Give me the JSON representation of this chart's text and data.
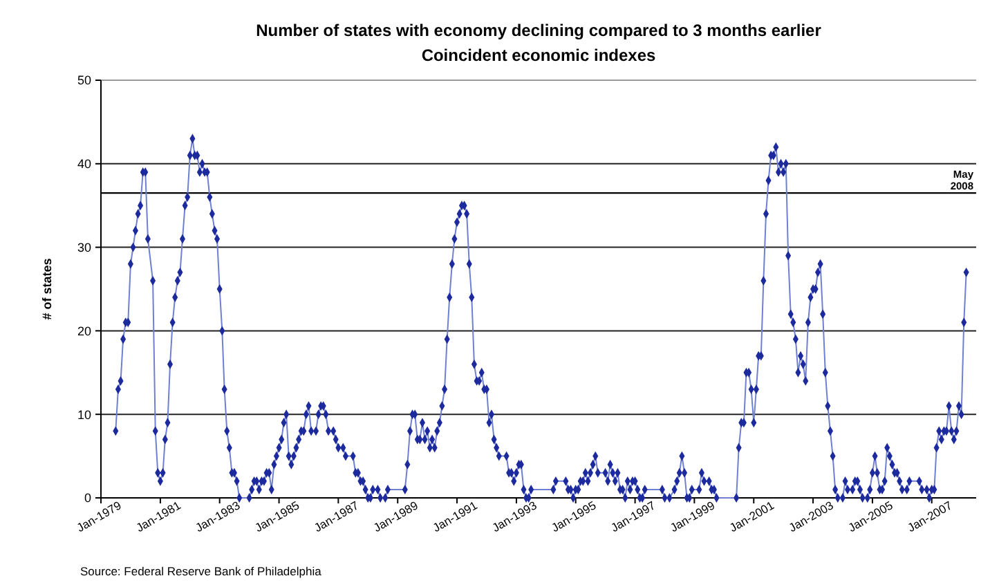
{
  "chart_data": {
    "type": "line",
    "title": "Number of states with economy declining compared to 3 months earlier",
    "subtitle": "Coincident economic indexes",
    "ylabel": "# of states",
    "xlim": [
      "1979-01",
      "2008-07"
    ],
    "ylim": [
      0,
      50
    ],
    "yticks": [
      0,
      10,
      20,
      30,
      40,
      50
    ],
    "xticks": [
      {
        "value": "1979-01",
        "label": "Jan-1979"
      },
      {
        "value": "1981-01",
        "label": "Jan-1981"
      },
      {
        "value": "1983-01",
        "label": "Jan-1983"
      },
      {
        "value": "1985-01",
        "label": "Jan-1985"
      },
      {
        "value": "1987-01",
        "label": "Jan-1987"
      },
      {
        "value": "1989-01",
        "label": "Jan-1989"
      },
      {
        "value": "1991-01",
        "label": "Jan-1991"
      },
      {
        "value": "1993-01",
        "label": "Jan-1993"
      },
      {
        "value": "1995-01",
        "label": "Jan-1995"
      },
      {
        "value": "1997-01",
        "label": "Jan-1997"
      },
      {
        "value": "1999-01",
        "label": "Jan-1999"
      },
      {
        "value": "2001-01",
        "label": "Jan-2001"
      },
      {
        "value": "2003-01",
        "label": "Jan-2003"
      },
      {
        "value": "2005-01",
        "label": "Jan-2005"
      },
      {
        "value": "2007-01",
        "label": "Jan-2007"
      }
    ],
    "grid": "y",
    "marker": "diamond",
    "ref_lines": [
      {
        "axis": "y",
        "value": 36.5,
        "label": "May 2008",
        "color": "#000000"
      }
    ],
    "annotations": [
      "Source: Federal Reserve Bank of Philadelphia"
    ],
    "series": [
      {
        "color": "#1c2a9e",
        "x": [
          "1979-07",
          "1979-08",
          "1979-09",
          "1979-10",
          "1979-11",
          "1979-12",
          "1980-01",
          "1980-02",
          "1980-03",
          "1980-04",
          "1980-05",
          "1980-06",
          "1980-07",
          "1980-08",
          "1980-10",
          "1980-11",
          "1980-12",
          "1981-01",
          "1981-02",
          "1981-03",
          "1981-04",
          "1981-05",
          "1981-06",
          "1981-07",
          "1981-08",
          "1981-09",
          "1981-10",
          "1981-11",
          "1981-12",
          "1982-01",
          "1982-02",
          "1982-03",
          "1982-04",
          "1982-05",
          "1982-06",
          "1982-07",
          "1982-08",
          "1982-09",
          "1982-10",
          "1982-11",
          "1982-12",
          "1983-01",
          "1983-02",
          "1983-03",
          "1983-04",
          "1983-05",
          "1983-06",
          "1983-07",
          "1983-08",
          "1983-09",
          "1984-01",
          "1984-02",
          "1984-03",
          "1984-04",
          "1984-05",
          "1984-06",
          "1984-07",
          "1984-08",
          "1984-09",
          "1984-10",
          "1984-11",
          "1984-12",
          "1985-01",
          "1985-02",
          "1985-03",
          "1985-04",
          "1985-05",
          "1985-06",
          "1985-07",
          "1985-08",
          "1985-09",
          "1985-10",
          "1985-11",
          "1985-12",
          "1986-01",
          "1986-02",
          "1986-04",
          "1986-05",
          "1986-06",
          "1986-07",
          "1986-08",
          "1986-09",
          "1986-11",
          "1986-12",
          "1987-01",
          "1987-03",
          "1987-04",
          "1987-07",
          "1987-08",
          "1987-09",
          "1987-10",
          "1987-11",
          "1987-12",
          "1988-01",
          "1988-02",
          "1988-03",
          "1988-05",
          "1988-06",
          "1988-08",
          "1988-09",
          "1989-04",
          "1989-05",
          "1989-06",
          "1989-07",
          "1989-08",
          "1989-09",
          "1989-10",
          "1989-11",
          "1989-12",
          "1990-01",
          "1990-02",
          "1990-03",
          "1990-04",
          "1990-05",
          "1990-06",
          "1990-07",
          "1990-08",
          "1990-09",
          "1990-10",
          "1990-11",
          "1990-12",
          "1991-01",
          "1991-02",
          "1991-03",
          "1991-04",
          "1991-05",
          "1991-06",
          "1991-07",
          "1991-08",
          "1991-09",
          "1991-10",
          "1991-11",
          "1991-12",
          "1992-01",
          "1992-02",
          "1992-03",
          "1992-04",
          "1992-05",
          "1992-06",
          "1992-09",
          "1992-10",
          "1992-11",
          "1992-12",
          "1993-01",
          "1993-02",
          "1993-03",
          "1993-04",
          "1993-05",
          "1993-06",
          "1993-07",
          "1994-04",
          "1994-05",
          "1994-09",
          "1994-10",
          "1994-11",
          "1994-12",
          "1995-01",
          "1995-02",
          "1995-03",
          "1995-04",
          "1995-05",
          "1995-06",
          "1995-07",
          "1995-08",
          "1995-09",
          "1995-10",
          "1996-01",
          "1996-02",
          "1996-03",
          "1996-04",
          "1996-05",
          "1996-06",
          "1996-07",
          "1996-08",
          "1996-09",
          "1996-10",
          "1996-11",
          "1996-12",
          "1997-01",
          "1997-02",
          "1997-03",
          "1997-04",
          "1997-05",
          "1997-12",
          "1998-01",
          "1998-03",
          "1998-05",
          "1998-06",
          "1998-07",
          "1998-08",
          "1998-09",
          "1998-10",
          "1998-11",
          "1998-12",
          "1999-03",
          "1999-04",
          "1999-05",
          "1999-07",
          "1999-08",
          "1999-09",
          "1999-10",
          "2000-06",
          "2000-07",
          "2000-08",
          "2000-09",
          "2000-10",
          "2000-11",
          "2000-12",
          "2001-01",
          "2001-02",
          "2001-03",
          "2001-04",
          "2001-05",
          "2001-06",
          "2001-07",
          "2001-08",
          "2001-09",
          "2001-10",
          "2001-11",
          "2001-12",
          "2002-01",
          "2002-02",
          "2002-03",
          "2002-04",
          "2002-05",
          "2002-06",
          "2002-07",
          "2002-08",
          "2002-09",
          "2002-10",
          "2002-11",
          "2002-12",
          "2003-01",
          "2003-02",
          "2003-03",
          "2003-04",
          "2003-05",
          "2003-06",
          "2003-07",
          "2003-08",
          "2003-09",
          "2003-10",
          "2003-11",
          "2004-01",
          "2004-02",
          "2004-03",
          "2004-05",
          "2004-06",
          "2004-07",
          "2004-08",
          "2004-09",
          "2004-11",
          "2004-12",
          "2005-01",
          "2005-02",
          "2005-03",
          "2005-04",
          "2005-05",
          "2005-06",
          "2005-07",
          "2005-08",
          "2005-09",
          "2005-10",
          "2005-11",
          "2005-12",
          "2006-01",
          "2006-03",
          "2006-04",
          "2006-08",
          "2006-09",
          "2006-11",
          "2006-12",
          "2007-01",
          "2007-02",
          "2007-03",
          "2007-04",
          "2007-05",
          "2007-06",
          "2007-07",
          "2007-08",
          "2007-09",
          "2007-10",
          "2007-11",
          "2007-12",
          "2008-01",
          "2008-02",
          "2008-03"
        ],
        "values": [
          8,
          13,
          14,
          19,
          21,
          21,
          28,
          30,
          32,
          34,
          35,
          39,
          39,
          31,
          26,
          8,
          3,
          2,
          3,
          7,
          9,
          16,
          21,
          24,
          26,
          27,
          31,
          35,
          36,
          41,
          43,
          41,
          41,
          39,
          40,
          39,
          39,
          36,
          34,
          32,
          31,
          25,
          20,
          13,
          8,
          6,
          3,
          3,
          2,
          0,
          0,
          1,
          2,
          2,
          1,
          2,
          2,
          3,
          3,
          1,
          4,
          5,
          6,
          7,
          9,
          10,
          5,
          4,
          5,
          6,
          7,
          8,
          8,
          10,
          11,
          8,
          8,
          10,
          11,
          11,
          10,
          8,
          8,
          7,
          6,
          6,
          5,
          5,
          3,
          3,
          2,
          2,
          1,
          0,
          0,
          1,
          1,
          0,
          0,
          1,
          1,
          4,
          8,
          10,
          10,
          7,
          7,
          9,
          7,
          8,
          6,
          7,
          6,
          8,
          9,
          11,
          13,
          19,
          24,
          28,
          31,
          33,
          34,
          35,
          35,
          34,
          28,
          24,
          16,
          14,
          14,
          15,
          13,
          13,
          9,
          10,
          7,
          6,
          5,
          5,
          3,
          3,
          2,
          3,
          4,
          4,
          1,
          0,
          0,
          1,
          1,
          2,
          2,
          1,
          1,
          0,
          1,
          1,
          2,
          2,
          3,
          2,
          3,
          4,
          5,
          3,
          3,
          2,
          4,
          3,
          2,
          3,
          1,
          1,
          0,
          2,
          1,
          2,
          2,
          1,
          0,
          0,
          1,
          1,
          0,
          0,
          1,
          2,
          3,
          5,
          3,
          0,
          0,
          1,
          1,
          3,
          2,
          2,
          1,
          1,
          0,
          0,
          6,
          9,
          9,
          15,
          15,
          13,
          9,
          13,
          17,
          17,
          26,
          34,
          38,
          41,
          41,
          42,
          39,
          40,
          39,
          40,
          29,
          22,
          21,
          19,
          15,
          17,
          16,
          14,
          21,
          24,
          25,
          25,
          27,
          28,
          22,
          15,
          11,
          8,
          5,
          1,
          0,
          0,
          2,
          1,
          1,
          2,
          2,
          1,
          0,
          0,
          1,
          3,
          5,
          3,
          1,
          1,
          2,
          6,
          5,
          4,
          3,
          3,
          2,
          1,
          1,
          2,
          2,
          1,
          1,
          0,
          1,
          1,
          6,
          8,
          7,
          8,
          8,
          11,
          8,
          7,
          8,
          11,
          10,
          21,
          27
        ]
      }
    ]
  }
}
